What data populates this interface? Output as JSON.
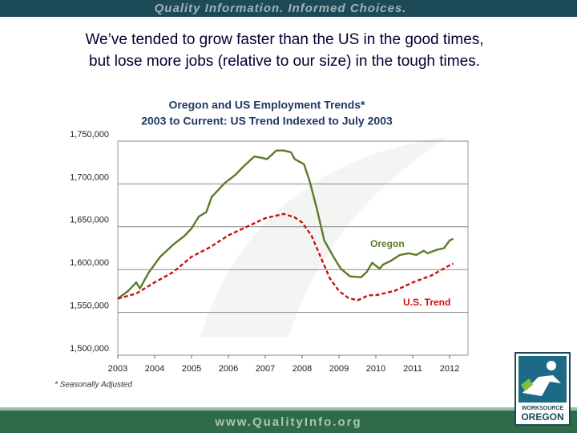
{
  "header": {
    "tagline": "Quality Information. Informed Choices."
  },
  "headline": [
    "We’ve tended to grow faster than the US in the good times,",
    "but lose more jobs (relative to our size) in the tough times."
  ],
  "footer": {
    "url": "www.QualityInfo.org"
  },
  "logo": {
    "line1": "WORKSOURCE",
    "line2": "OREGON"
  },
  "chart_data": {
    "type": "line",
    "title": "Oregon and US Employment Trends*",
    "subtitle": "2003 to Current:  US Trend Indexed to July 2003",
    "footnote": "* Seasonally Adjusted",
    "annotations": [
      "Oregon",
      "U.S. Trend"
    ],
    "xlim": [
      2003,
      2012.5
    ],
    "xticks": [
      2003,
      2004,
      2005,
      2006,
      2007,
      2008,
      2009,
      2010,
      2011,
      2012
    ],
    "ylim": [
      1500000,
      1750000
    ],
    "yticks": [
      {
        "value": 1500000,
        "label": "1,500,000"
      },
      {
        "value": 1550000,
        "label": "1,550,000"
      },
      {
        "value": 1600000,
        "label": "1,600,000"
      },
      {
        "value": 1650000,
        "label": "1,650,000"
      },
      {
        "value": 1700000,
        "label": "1,700,000"
      },
      {
        "value": 1750000,
        "label": "1,750,000"
      }
    ],
    "grid": true,
    "series": [
      {
        "name": "Oregon",
        "color": "#5b7a2b",
        "dash": false,
        "x": [
          2003.0,
          2003.28,
          2003.5,
          2003.6,
          2003.83,
          2004.15,
          2004.5,
          2004.8,
          2005.0,
          2005.2,
          2005.4,
          2005.55,
          2005.9,
          2006.2,
          2006.4,
          2006.7,
          2006.85,
          2007.05,
          2007.3,
          2007.5,
          2007.7,
          2007.8,
          2008.05,
          2008.2,
          2008.4,
          2008.6,
          2008.85,
          2009.05,
          2009.3,
          2009.6,
          2009.75,
          2009.9,
          2010.1,
          2010.2,
          2010.4,
          2010.65,
          2010.9,
          2011.1,
          2011.3,
          2011.4,
          2011.65,
          2011.85,
          2012.0,
          2012.1
        ],
        "values": [
          1566000,
          1575000,
          1585000,
          1578000,
          1596000,
          1615000,
          1629000,
          1639000,
          1648000,
          1662000,
          1667000,
          1685000,
          1701000,
          1711000,
          1720000,
          1732000,
          1731000,
          1729000,
          1739000,
          1739000,
          1737000,
          1729000,
          1723000,
          1704000,
          1671000,
          1634000,
          1615000,
          1601000,
          1592000,
          1591000,
          1597000,
          1608000,
          1601000,
          1606000,
          1610000,
          1617000,
          1619000,
          1617000,
          1622000,
          1619000,
          1623000,
          1625000,
          1634000,
          1636000
        ]
      },
      {
        "name": "U.S. Trend",
        "color": "#cc1010",
        "dash": true,
        "x": [
          2003.0,
          2003.5,
          2004.0,
          2004.5,
          2005.0,
          2005.5,
          2006.0,
          2006.5,
          2007.0,
          2007.5,
          2007.8,
          2008.0,
          2008.25,
          2008.5,
          2008.75,
          2009.0,
          2009.25,
          2009.5,
          2009.8,
          2010.0,
          2010.5,
          2011.0,
          2011.5,
          2012.0,
          2012.1
        ],
        "values": [
          1566000,
          1572000,
          1585000,
          1597000,
          1615000,
          1626000,
          1640000,
          1650000,
          1660000,
          1665000,
          1661000,
          1655000,
          1640000,
          1615000,
          1590000,
          1575000,
          1567000,
          1564000,
          1570000,
          1570000,
          1575000,
          1585000,
          1593000,
          1605000,
          1607000
        ]
      }
    ]
  }
}
